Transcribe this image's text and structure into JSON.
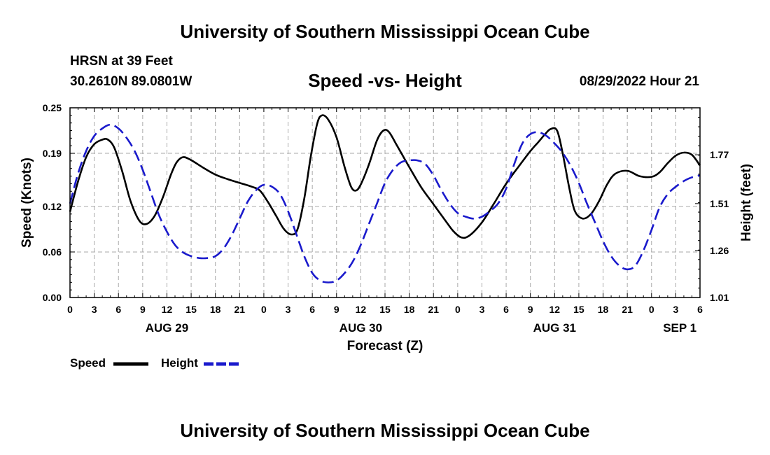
{
  "header": {
    "title": "University of Southern Mississippi Ocean Cube",
    "station": "HRSN at 39 Feet",
    "coords": "30.2610N  89.0801W",
    "subtitle": "Speed -vs- Height",
    "datetime": "08/29/2022 Hour 21"
  },
  "footer": {
    "title": "University of Southern Mississippi Ocean Cube"
  },
  "legend": {
    "speed_label": "Speed",
    "height_label": "Height"
  },
  "colors": {
    "speed": "#000000",
    "height": "#1a1acc",
    "grid": "#aaaaaa"
  },
  "chart_data": {
    "type": "line",
    "title": "Speed -vs- Height",
    "xlabel": "Forecast (Z)",
    "ylabel": "Speed (Knots)",
    "y2label": "Height (feet)",
    "xlim": [
      0,
      78
    ],
    "ylim": [
      0,
      0.25
    ],
    "y2lim": [
      1.01,
      2.02
    ],
    "x_ticks": [
      0,
      3,
      6,
      9,
      12,
      15,
      18,
      21,
      24,
      27,
      30,
      33,
      36,
      39,
      42,
      45,
      48,
      51,
      54,
      57,
      60,
      63,
      66,
      69,
      72,
      75,
      78
    ],
    "x_tick_labels": [
      "0",
      "3",
      "6",
      "9",
      "12",
      "15",
      "18",
      "21",
      "0",
      "3",
      "6",
      "9",
      "12",
      "15",
      "18",
      "21",
      "0",
      "3",
      "6",
      "9",
      "12",
      "15",
      "18",
      "21",
      "0",
      "3",
      "6"
    ],
    "y_ticks": [
      0,
      0.06,
      0.12,
      0.19,
      0.25
    ],
    "y_tick_labels": [
      "0.00",
      "0.06",
      "0.12",
      "0.19",
      "0.25"
    ],
    "y2_ticks": [
      1.01,
      1.26,
      1.51,
      1.77
    ],
    "y2_tick_labels": [
      "1.01",
      "1.26",
      "1.51",
      "1.77"
    ],
    "date_labels": [
      {
        "x": 12,
        "label": "AUG 29"
      },
      {
        "x": 36,
        "label": "AUG 30"
      },
      {
        "x": 60,
        "label": "AUG 31"
      },
      {
        "x": 75.5,
        "label": "SEP 1"
      }
    ],
    "series": [
      {
        "name": "Speed",
        "axis": "left",
        "style": "solid",
        "x": [
          0,
          1,
          2,
          3,
          4,
          4.7,
          5.5,
          6.5,
          7.5,
          8.6,
          9.5,
          10.5,
          11.5,
          12.5,
          13.2,
          14,
          15,
          16.5,
          18,
          19.5,
          21,
          22.5,
          23.5,
          24.5,
          25.5,
          26.5,
          27.5,
          28.2,
          29,
          29.8,
          30.6,
          31.2,
          32,
          33,
          34,
          34.8,
          35.4,
          36,
          37,
          38,
          38.8,
          39.5,
          40.5,
          42,
          43.5,
          45,
          46.5,
          47.5,
          48.5,
          49.5,
          51,
          52.5,
          54,
          55.5,
          57,
          58,
          58.8,
          59.5,
          60.3,
          61,
          61.8,
          62.5,
          63.5,
          64.5,
          65.5,
          66.5,
          67.5,
          69,
          70.5,
          72,
          73,
          74,
          75,
          76,
          77,
          78
        ],
        "values": [
          0.113,
          0.153,
          0.185,
          0.202,
          0.208,
          0.208,
          0.197,
          0.165,
          0.127,
          0.101,
          0.097,
          0.108,
          0.132,
          0.162,
          0.178,
          0.185,
          0.181,
          0.171,
          0.162,
          0.156,
          0.151,
          0.146,
          0.141,
          0.126,
          0.108,
          0.09,
          0.083,
          0.091,
          0.13,
          0.185,
          0.229,
          0.24,
          0.234,
          0.211,
          0.172,
          0.146,
          0.141,
          0.149,
          0.175,
          0.207,
          0.22,
          0.218,
          0.2,
          0.172,
          0.145,
          0.123,
          0.101,
          0.087,
          0.079,
          0.082,
          0.099,
          0.124,
          0.15,
          0.172,
          0.193,
          0.205,
          0.215,
          0.222,
          0.22,
          0.19,
          0.145,
          0.114,
          0.104,
          0.11,
          0.127,
          0.149,
          0.163,
          0.167,
          0.16,
          0.159,
          0.165,
          0.177,
          0.187,
          0.191,
          0.188,
          0.174
        ]
      },
      {
        "name": "Height",
        "axis": "right",
        "style": "dashed",
        "x": [
          0,
          1,
          2,
          3,
          4,
          5,
          6,
          7,
          8,
          9,
          10,
          11,
          12,
          13,
          14,
          15,
          16,
          17,
          18,
          19,
          20,
          21,
          22,
          23,
          24,
          25,
          26,
          27,
          28,
          29,
          30,
          31,
          32,
          33,
          34,
          35,
          36,
          37,
          38,
          39,
          40,
          41,
          42,
          43,
          44,
          45,
          46,
          47,
          48,
          49,
          50,
          51,
          52,
          53,
          54,
          55,
          56,
          57,
          58,
          59,
          60,
          61,
          62,
          63,
          64,
          65,
          66,
          67,
          68,
          69,
          70,
          71,
          72,
          73,
          74,
          75,
          76,
          77,
          78
        ],
        "values": [
          1.51,
          1.67,
          1.79,
          1.87,
          1.91,
          1.93,
          1.91,
          1.86,
          1.79,
          1.69,
          1.57,
          1.45,
          1.36,
          1.29,
          1.25,
          1.23,
          1.22,
          1.22,
          1.23,
          1.27,
          1.34,
          1.43,
          1.52,
          1.58,
          1.61,
          1.6,
          1.56,
          1.47,
          1.35,
          1.23,
          1.14,
          1.1,
          1.09,
          1.1,
          1.14,
          1.2,
          1.29,
          1.4,
          1.51,
          1.62,
          1.69,
          1.73,
          1.74,
          1.74,
          1.72,
          1.66,
          1.58,
          1.51,
          1.46,
          1.44,
          1.43,
          1.44,
          1.47,
          1.51,
          1.59,
          1.72,
          1.83,
          1.88,
          1.89,
          1.87,
          1.83,
          1.78,
          1.71,
          1.62,
          1.51,
          1.41,
          1.31,
          1.23,
          1.18,
          1.16,
          1.18,
          1.26,
          1.37,
          1.49,
          1.56,
          1.6,
          1.63,
          1.65,
          1.66
        ]
      }
    ]
  }
}
